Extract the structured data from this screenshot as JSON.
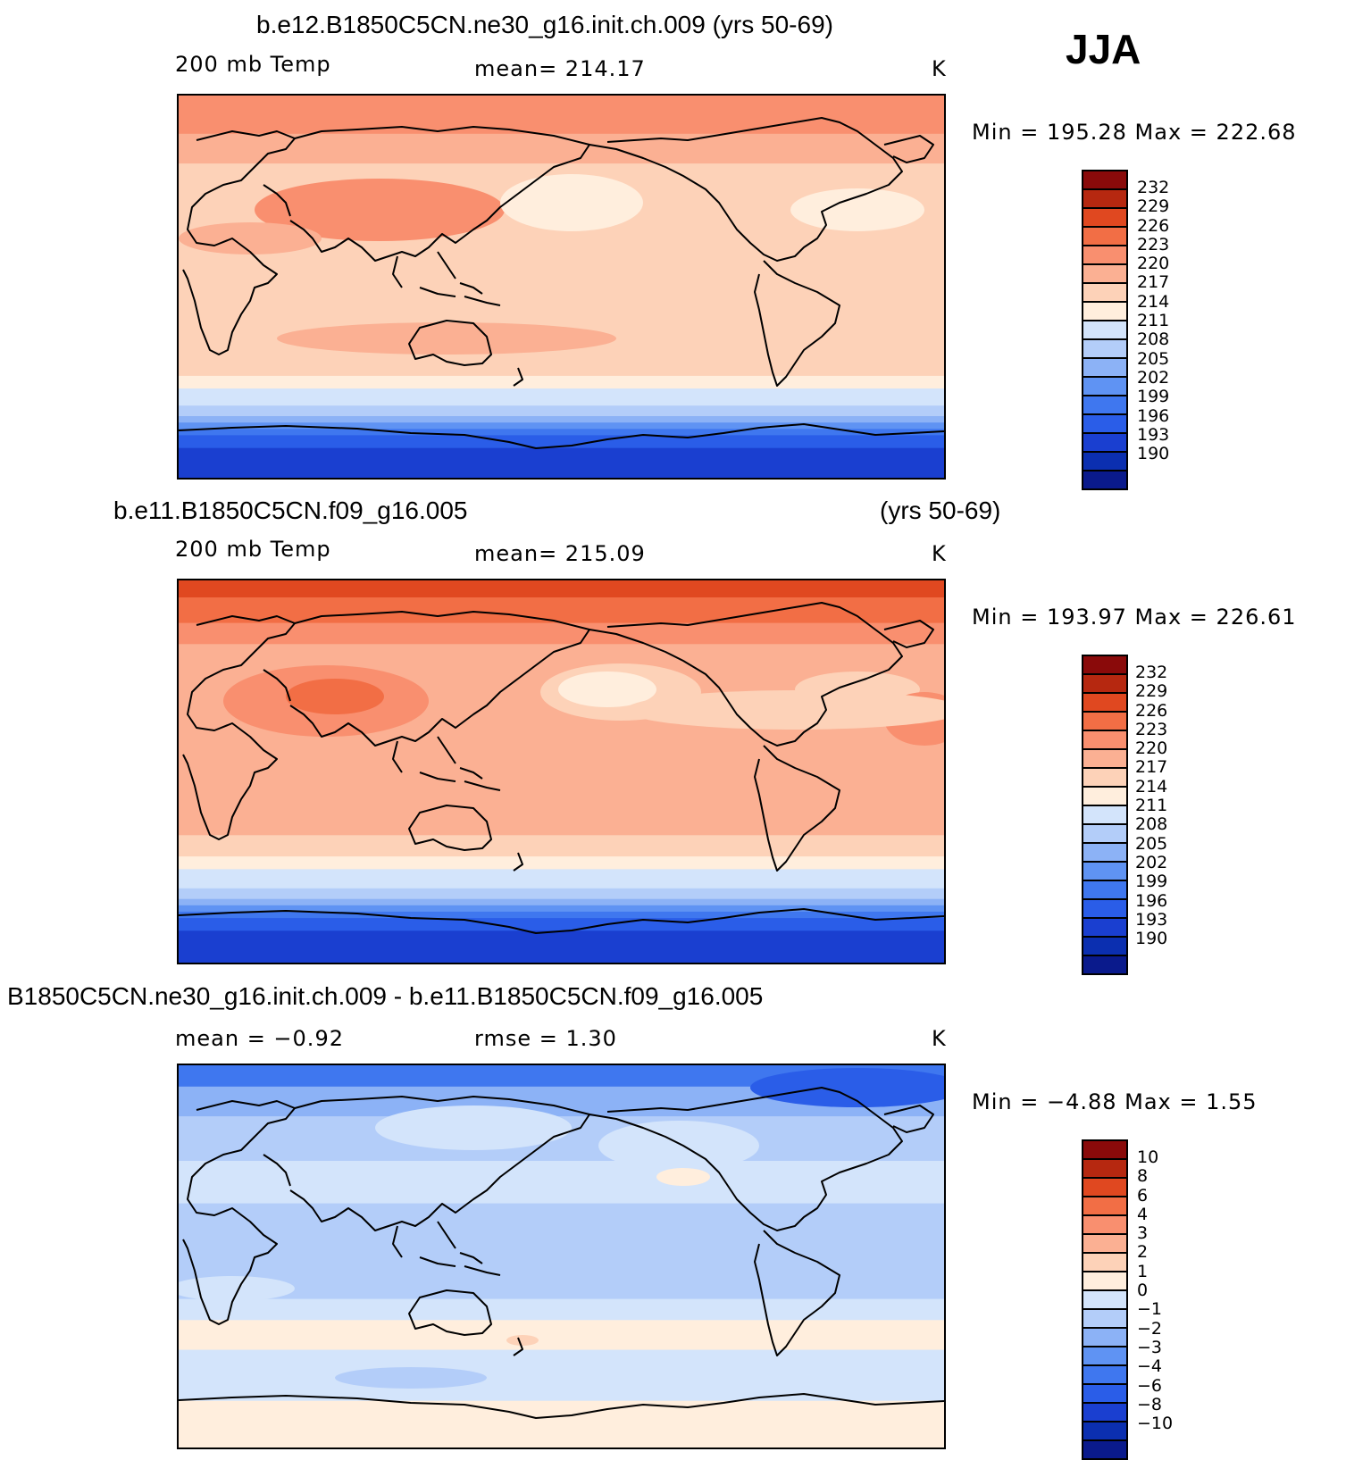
{
  "season": "JJA",
  "scale_tick_label_variable": "-10",
  "palette": {
    "temp": [
      "#0a1a8c",
      "#0b2fb0",
      "#1a3fd0",
      "#2a5de8",
      "#3f77ef",
      "#5f93f3",
      "#8cb2f6",
      "#b3cdf9",
      "#d3e4fb",
      "#ffeedd",
      "#fdd2b8",
      "#fbb093",
      "#f98f6f",
      "#f26e45",
      "#e04820",
      "#b62810",
      "#8a0a0a"
    ],
    "diff": [
      "#0a1a8c",
      "#0b2fb0",
      "#1a3fd0",
      "#2a5de8",
      "#3f77ef",
      "#5f93f3",
      "#8cb2f6",
      "#b3cdf9",
      "#d3e4fb",
      "#ffeedd",
      "#fdd2b8",
      "#fbb093",
      "#f98f6f",
      "#f26e45",
      "#e04820",
      "#b62810",
      "#8a0a0a"
    ]
  },
  "panels": [
    {
      "title": "b.e12.B1850C5CN.ne30_g16.init.ch.009 (yrs 50-69)",
      "title_right": "",
      "variable": "200 mb Temp",
      "stat": "mean=  214.17",
      "stat2": "",
      "units": "K",
      "minmax": "Min  =  195.28  Max  =  222.68",
      "ticks": [
        "232",
        "229",
        "226",
        "223",
        "220",
        "217",
        "214",
        "211",
        "208",
        "205",
        "202",
        "199",
        "196",
        "193",
        "190"
      ],
      "bands": [
        {
          "lat_top": 90,
          "lat_bot": 72,
          "color": "#f98f6f"
        },
        {
          "lat_top": 72,
          "lat_bot": 58,
          "color": "#fbb093"
        },
        {
          "lat_top": 58,
          "lat_bot": -42,
          "color": "#fdd2b8"
        },
        {
          "lat_top": -42,
          "lat_bot": -48,
          "color": "#ffeedd"
        },
        {
          "lat_top": -48,
          "lat_bot": -56,
          "color": "#d3e4fb"
        },
        {
          "lat_top": -56,
          "lat_bot": -61,
          "color": "#b3cdf9"
        },
        {
          "lat_top": -61,
          "lat_bot": -64,
          "color": "#8cb2f6"
        },
        {
          "lat_top": -64,
          "lat_bot": -67,
          "color": "#5f93f3"
        },
        {
          "lat_top": -67,
          "lat_bot": -70,
          "color": "#3f77ef"
        },
        {
          "lat_top": -70,
          "lat_bot": -76,
          "color": "#2a5de8"
        },
        {
          "lat_top": -76,
          "lat_bot": -90,
          "color": "#1a3fd0"
        }
      ]
    },
    {
      "title": "b.e11.B1850C5CN.f09_g16.005",
      "title_right": "(yrs 50-69)",
      "variable": "200 mb Temp",
      "stat": "mean=  215.09",
      "stat2": "",
      "units": "K",
      "minmax": "Min  =  193.97  Max  =  226.61",
      "ticks": [
        "232",
        "229",
        "226",
        "223",
        "220",
        "217",
        "214",
        "211",
        "208",
        "205",
        "202",
        "199",
        "196",
        "193",
        "190"
      ],
      "bands": [
        {
          "lat_top": 90,
          "lat_bot": 82,
          "color": "#e04820"
        },
        {
          "lat_top": 82,
          "lat_bot": 70,
          "color": "#f26e45"
        },
        {
          "lat_top": 70,
          "lat_bot": 60,
          "color": "#f98f6f"
        },
        {
          "lat_top": 60,
          "lat_bot": -30,
          "color": "#fbb093"
        },
        {
          "lat_top": -30,
          "lat_bot": -40,
          "color": "#fdd2b8"
        },
        {
          "lat_top": -40,
          "lat_bot": -46,
          "color": "#ffeedd"
        },
        {
          "lat_top": -46,
          "lat_bot": -55,
          "color": "#d3e4fb"
        },
        {
          "lat_top": -55,
          "lat_bot": -60,
          "color": "#b3cdf9"
        },
        {
          "lat_top": -60,
          "lat_bot": -63,
          "color": "#8cb2f6"
        },
        {
          "lat_top": -63,
          "lat_bot": -66,
          "color": "#5f93f3"
        },
        {
          "lat_top": -66,
          "lat_bot": -69,
          "color": "#3f77ef"
        },
        {
          "lat_top": -69,
          "lat_bot": -75,
          "color": "#2a5de8"
        },
        {
          "lat_top": -75,
          "lat_bot": -90,
          "color": "#1a3fd0"
        }
      ]
    },
    {
      "title": "B1850C5CN.ne30_g16.init.ch.009 - b.e11.B1850C5CN.f09_g16.005",
      "title_right": "",
      "variable": "mean  =    −0.92",
      "stat": "rmse  =     1.30",
      "stat2": "",
      "units": "K",
      "minmax": "Min  =    −4.88  Max  =     1.55",
      "ticks": [
        "10",
        "8",
        "6",
        "4",
        "3",
        "2",
        "1",
        "0",
        "−1",
        "−2",
        "−3",
        "−4",
        "−6",
        "−8",
        "−10"
      ],
      "bands": [
        {
          "lat_top": 90,
          "lat_bot": 80,
          "color": "#3f77ef"
        },
        {
          "lat_top": 80,
          "lat_bot": 66,
          "color": "#8cb2f6"
        },
        {
          "lat_top": 66,
          "lat_bot": 45,
          "color": "#b3cdf9"
        },
        {
          "lat_top": 45,
          "lat_bot": 25,
          "color": "#d3e4fb"
        },
        {
          "lat_top": 25,
          "lat_bot": -20,
          "color": "#b3cdf9"
        },
        {
          "lat_top": -20,
          "lat_bot": -30,
          "color": "#d3e4fb"
        },
        {
          "lat_top": -30,
          "lat_bot": -44,
          "color": "#ffeedd"
        },
        {
          "lat_top": -44,
          "lat_bot": -68,
          "color": "#d3e4fb"
        },
        {
          "lat_top": -68,
          "lat_bot": -90,
          "color": "#ffeedd"
        }
      ]
    }
  ]
}
